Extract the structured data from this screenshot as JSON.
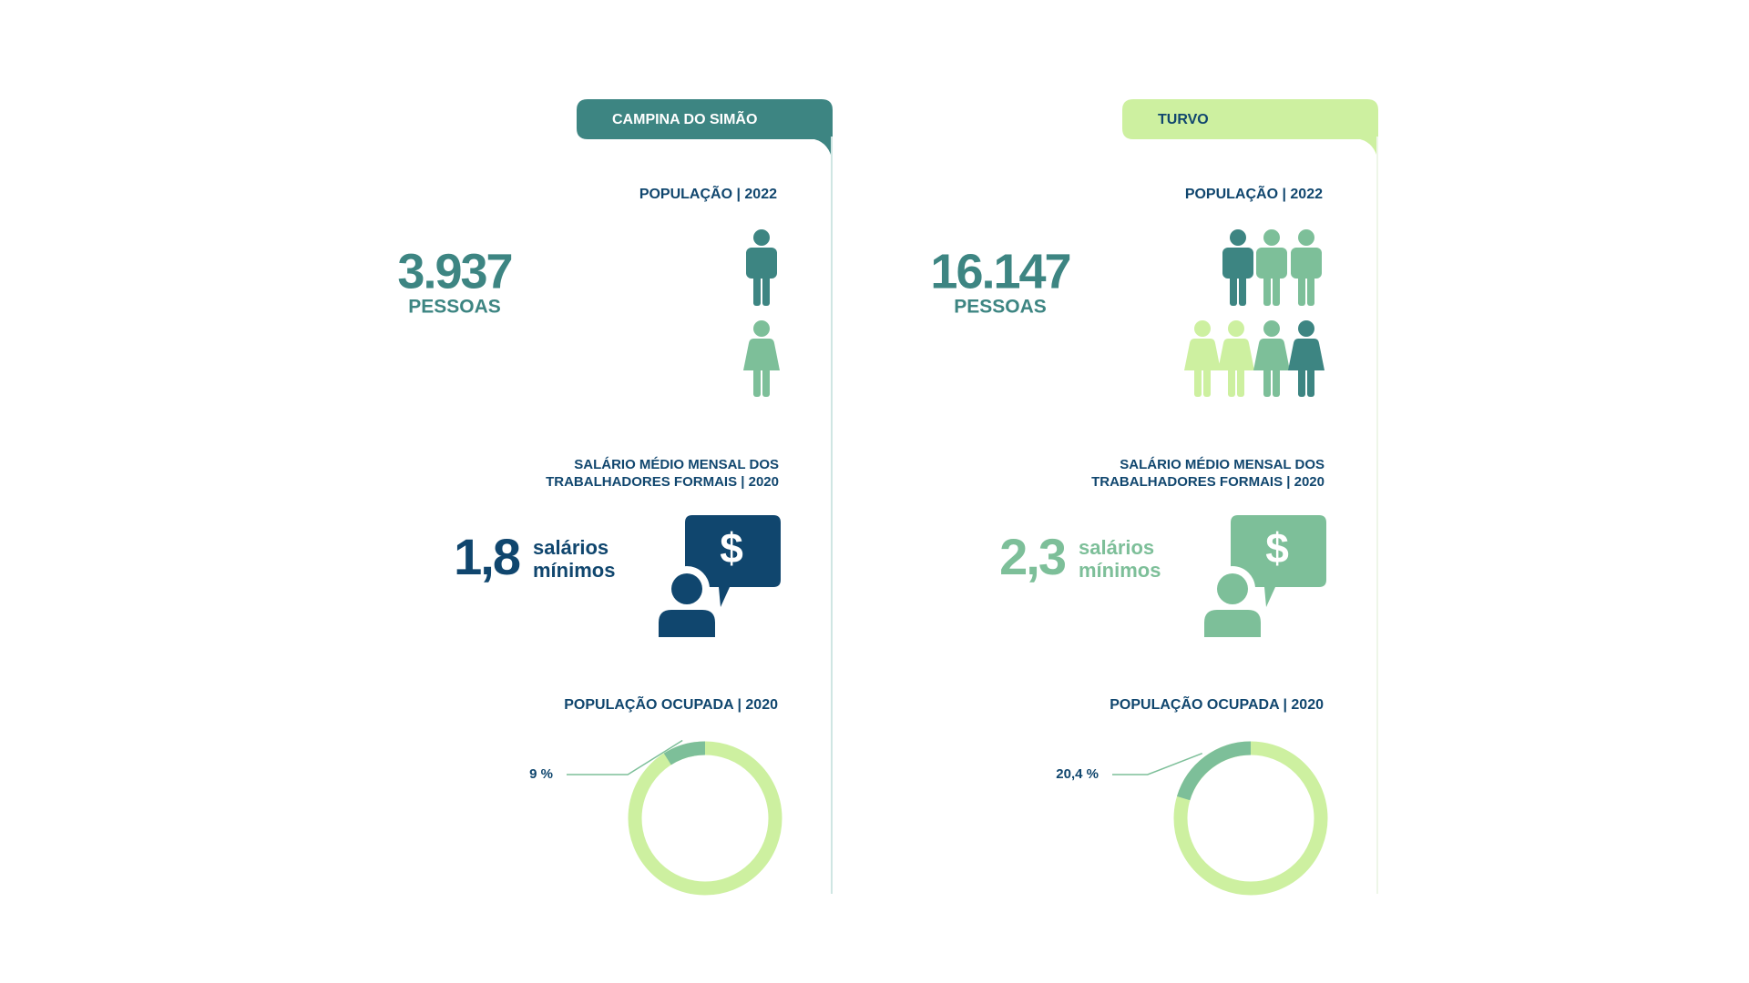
{
  "panels": [
    {
      "name": "CAMPINA DO SIMÃO",
      "population_label": "POPULAÇÃO | 2022",
      "population": "3.937",
      "population_unit": "PESSOAS",
      "salary_label": [
        "SALÁRIO MÉDIO MENSAL DOS",
        "TRABALHADORES FORMAIS | 2020"
      ],
      "salary": "1,8",
      "salary_unit": [
        "salários",
        "mínimos"
      ],
      "occupied_label": "POPULAÇÃO OCUPADA | 2020",
      "occupied": {
        "value": 9,
        "label": "9 %"
      }
    },
    {
      "name": "TURVO",
      "population_label": "POPULAÇÃO | 2022",
      "population": "16.147",
      "population_unit": "PESSOAS",
      "salary_label": [
        "SALÁRIO MÉDIO MENSAL DOS",
        "TRABALHADORES FORMAIS | 2020"
      ],
      "salary": "2,3",
      "salary_unit": [
        "salários",
        "mínimos"
      ],
      "occupied_label": "POPULAÇÃO OCUPADA | 2020",
      "occupied": {
        "value": 20.4,
        "label": "20,4 %"
      }
    }
  ]
}
